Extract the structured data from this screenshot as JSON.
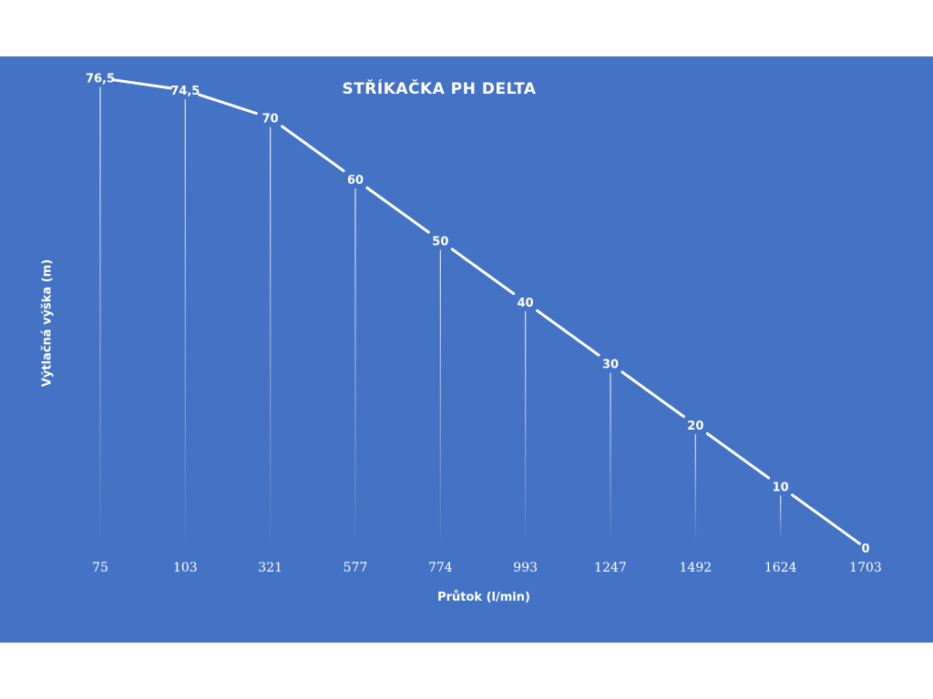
{
  "chart_data": {
    "type": "line",
    "title": "STŘÍKAČKA PH DELTA",
    "xlabel": "Průtok (l/min)",
    "ylabel": "Výtlačná výška (m)",
    "categories": [
      "75",
      "103",
      "321",
      "577",
      "774",
      "993",
      "1247",
      "1492",
      "1624",
      "1703"
    ],
    "series": [
      {
        "values": [
          76.5,
          74.5,
          70,
          60,
          50,
          40,
          30,
          20,
          10,
          0
        ],
        "labels": [
          "76,5",
          "74,5",
          "70",
          "60",
          "50",
          "40",
          "30",
          "20",
          "10",
          "0"
        ]
      }
    ],
    "ylim": [
      0,
      80
    ],
    "grid": false,
    "drop_lines": true,
    "legend": "none",
    "colors": {
      "background": "#4472c4",
      "line": "#ffffff",
      "text": "#ffffff"
    }
  }
}
